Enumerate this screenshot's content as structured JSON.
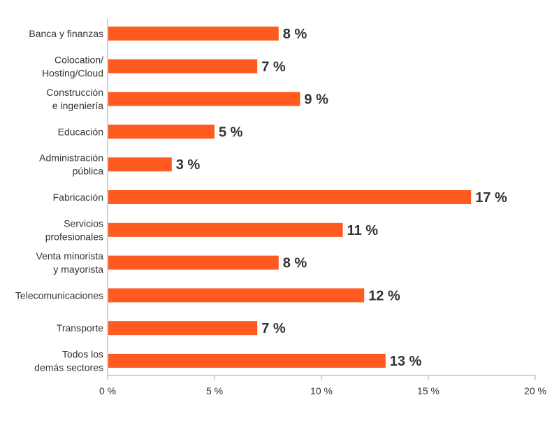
{
  "chart_data": {
    "type": "bar",
    "orientation": "horizontal",
    "categories": [
      [
        "Banca y finanzas"
      ],
      [
        "Colocation/",
        "Hosting/Cloud"
      ],
      [
        "Construcción",
        "e ingeniería"
      ],
      [
        "Educación"
      ],
      [
        "Administración",
        "pública"
      ],
      [
        "Fabricación"
      ],
      [
        "Servicios",
        "profesionales"
      ],
      [
        "Venta minorista",
        "y mayorista"
      ],
      [
        "Telecomunicaciones"
      ],
      [
        "Transporte"
      ],
      [
        "Todos los",
        "demás sectores"
      ]
    ],
    "values": [
      8,
      7,
      9,
      5,
      3,
      17,
      11,
      8,
      12,
      7,
      13
    ],
    "data_labels": [
      "8 %",
      "7 %",
      "9 %",
      "5 %",
      "3 %",
      "17 %",
      "11 %",
      "8 %",
      "12 %",
      "7 %",
      "13 %"
    ],
    "xlim": [
      0,
      20
    ],
    "xticks": [
      0,
      5,
      10,
      15,
      20
    ],
    "xtick_labels": [
      "0 %",
      "5 %",
      "10 %",
      "15 %",
      "20 %"
    ],
    "grid": false,
    "bar_color": "#FF5A1F",
    "axis_color": "#D0D0D0"
  }
}
